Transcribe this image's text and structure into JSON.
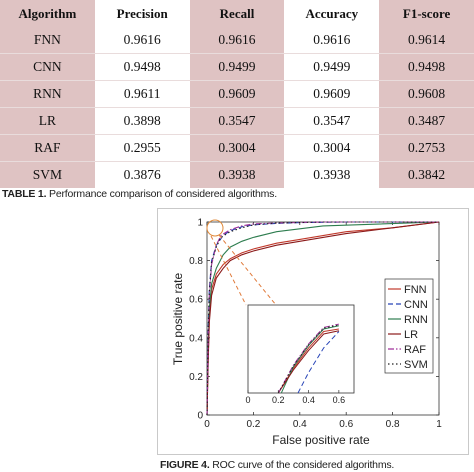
{
  "table": {
    "caption_label": "TABLE 1.",
    "caption_text": "Performance comparison of considered algorithms.",
    "headers": [
      "Algorithm",
      "Precision",
      "Recall",
      "Accuracy",
      "F1-score"
    ],
    "rows": [
      [
        "FNN",
        "0.9616",
        "0.9616",
        "0.9616",
        "0.9614"
      ],
      [
        "CNN",
        "0.9498",
        "0.9499",
        "0.9499",
        "0.9498"
      ],
      [
        "RNN",
        "0.9611",
        "0.9609",
        "0.9609",
        "0.9608"
      ],
      [
        "LR",
        "0.3898",
        "0.3547",
        "0.3547",
        "0.3487"
      ],
      [
        "RAF",
        "0.2955",
        "0.3004",
        "0.3004",
        "0.2753"
      ],
      [
        "SVM",
        "0.3876",
        "0.3938",
        "0.3938",
        "0.3842"
      ]
    ]
  },
  "figure": {
    "caption_label": "FIGURE 4.",
    "caption_text": "ROC curve of the considered algorithms."
  },
  "chart_data": {
    "type": "line",
    "title": "",
    "xlabel": "False positive rate",
    "ylabel": "True positive rate",
    "xlim": [
      0,
      1
    ],
    "ylim": [
      0,
      1
    ],
    "xticks": [
      "0",
      "0.2",
      "0.4",
      "0.6",
      "0.8",
      "1"
    ],
    "yticks": [
      "0",
      "0.2",
      "0.4",
      "0.6",
      "0.8",
      "1"
    ],
    "legend_position": "right",
    "grid": false,
    "series": [
      {
        "name": "FNN",
        "color": "#c0392b",
        "dash": "solid",
        "x": [
          0,
          0.005,
          0.01,
          0.02,
          0.04,
          0.07,
          0.1,
          0.15,
          0.2,
          0.3,
          0.4,
          0.6,
          0.8,
          1
        ],
        "y": [
          0,
          0.3,
          0.5,
          0.65,
          0.73,
          0.78,
          0.81,
          0.84,
          0.86,
          0.89,
          0.91,
          0.95,
          0.97,
          1
        ]
      },
      {
        "name": "CNN",
        "color": "#2845b8",
        "dash": "dashed",
        "x": [
          0,
          0.005,
          0.01,
          0.02,
          0.04,
          0.07,
          0.1,
          0.15,
          0.2,
          0.3,
          0.4,
          0.6,
          1
        ],
        "y": [
          0,
          0.45,
          0.65,
          0.8,
          0.88,
          0.93,
          0.955,
          0.975,
          0.985,
          0.993,
          0.997,
          1,
          1
        ]
      },
      {
        "name": "RNN",
        "color": "#2e7d4f",
        "dash": "solid",
        "x": [
          0,
          0.005,
          0.01,
          0.02,
          0.04,
          0.07,
          0.1,
          0.15,
          0.2,
          0.3,
          0.5,
          1
        ],
        "y": [
          0,
          0.35,
          0.55,
          0.68,
          0.76,
          0.83,
          0.87,
          0.9,
          0.92,
          0.95,
          0.98,
          1
        ]
      },
      {
        "name": "LR",
        "color": "#8b1a1a",
        "dash": "solid",
        "x": [
          0,
          0.005,
          0.01,
          0.02,
          0.04,
          0.07,
          0.1,
          0.15,
          0.2,
          0.3,
          0.4,
          0.6,
          0.8,
          1
        ],
        "y": [
          0,
          0.28,
          0.48,
          0.62,
          0.71,
          0.76,
          0.8,
          0.83,
          0.85,
          0.88,
          0.9,
          0.94,
          0.97,
          1
        ]
      },
      {
        "name": "RAF",
        "color": "#a0329a",
        "dash": "dashdot",
        "x": [
          0,
          0.005,
          0.01,
          0.02,
          0.04,
          0.06,
          0.1,
          0.15,
          0.2,
          0.3,
          0.5,
          1
        ],
        "y": [
          0,
          0.4,
          0.62,
          0.78,
          0.88,
          0.93,
          0.96,
          0.98,
          0.99,
          0.995,
          1,
          1
        ]
      },
      {
        "name": "SVM",
        "color": "#222222",
        "dash": "dotted",
        "x": [
          0,
          0.005,
          0.01,
          0.02,
          0.04,
          0.06,
          0.1,
          0.15,
          0.2,
          0.3,
          0.5,
          1
        ],
        "y": [
          0,
          0.42,
          0.63,
          0.79,
          0.87,
          0.92,
          0.95,
          0.97,
          0.985,
          0.995,
          1,
          1
        ]
      }
    ],
    "inset": {
      "description_zoom_region": {
        "x": [
          0,
          0.06
        ],
        "y": [
          0.92,
          1
        ]
      },
      "series": [
        {
          "name": "FNN",
          "x": [
            0.2,
            0.3,
            0.4,
            0.5,
            0.6
          ],
          "y": [
            0,
            0.3,
            0.55,
            0.75,
            0.78
          ]
        },
        {
          "name": "CNN",
          "x": [
            0.33,
            0.4,
            0.5,
            0.6
          ],
          "y": [
            0,
            0.25,
            0.55,
            0.75
          ]
        },
        {
          "name": "RNN",
          "x": [
            0.22,
            0.3,
            0.4,
            0.5,
            0.6
          ],
          "y": [
            0,
            0.32,
            0.58,
            0.78,
            0.82
          ]
        },
        {
          "name": "LR",
          "x": [
            0.2,
            0.3,
            0.4,
            0.5,
            0.6
          ],
          "y": [
            0,
            0.28,
            0.52,
            0.72,
            0.76
          ]
        },
        {
          "name": "RAF",
          "x": [
            0.2,
            0.3,
            0.4,
            0.5,
            0.6
          ],
          "y": [
            0,
            0.34,
            0.6,
            0.8,
            0.84
          ]
        },
        {
          "name": "SVM",
          "x": [
            0.2,
            0.3,
            0.4,
            0.5,
            0.6
          ],
          "y": [
            0,
            0.33,
            0.59,
            0.79,
            0.83
          ]
        }
      ],
      "xticks": [
        "0",
        "0.2",
        "0.4",
        "0.6"
      ]
    }
  }
}
